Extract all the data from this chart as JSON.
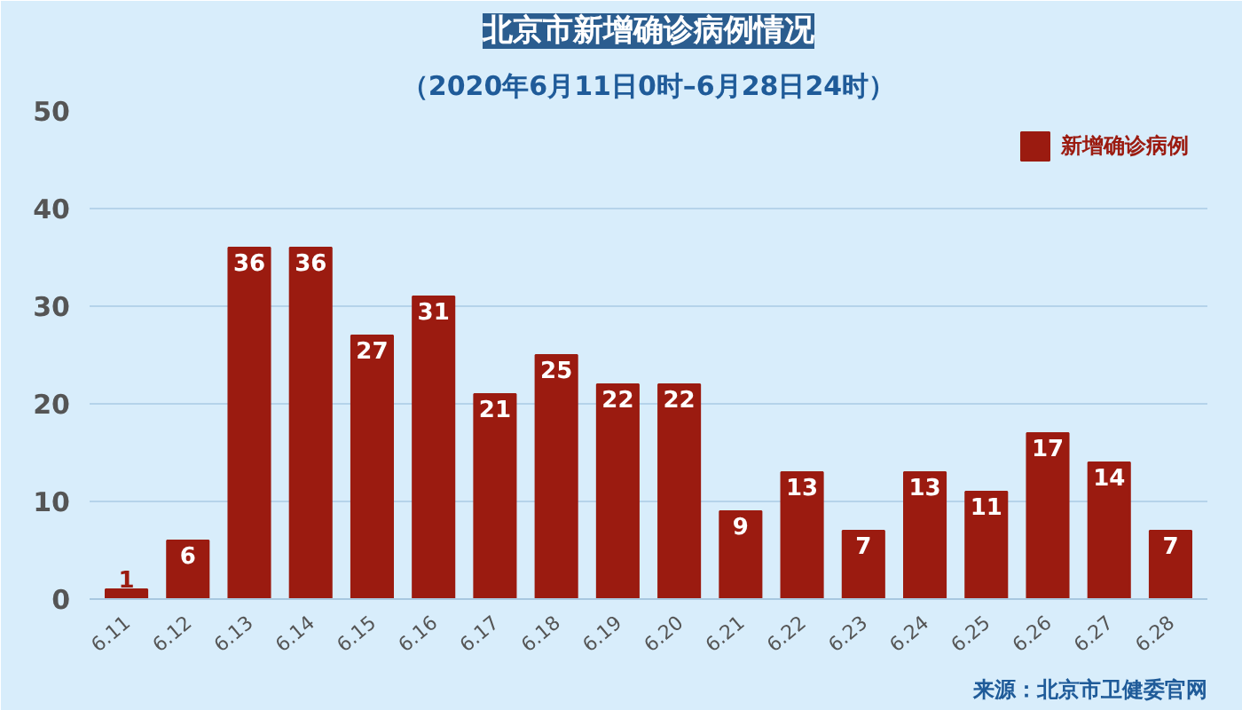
{
  "chart_data": {
    "type": "bar",
    "title": "北京市新增确诊病例情况",
    "subtitle": "（2020年6月11日0时–6月28日24时）",
    "categories": [
      "6.11",
      "6.12",
      "6.13",
      "6.14",
      "6.15",
      "6.16",
      "6.17",
      "6.18",
      "6.19",
      "6.20",
      "6.21",
      "6.22",
      "6.23",
      "6.24",
      "6.25",
      "6.26",
      "6.27",
      "6.28"
    ],
    "series": [
      {
        "name": "新增确诊病例",
        "color": "#9b1b10",
        "values": [
          1,
          6,
          36,
          36,
          27,
          31,
          21,
          25,
          22,
          22,
          9,
          13,
          7,
          13,
          11,
          17,
          14,
          7
        ]
      }
    ],
    "ylim": [
      0,
      50
    ],
    "yticks": [
      0,
      10,
      20,
      30,
      40,
      50
    ],
    "grid": "y",
    "legend": "top right",
    "data_labels": true,
    "annotations": [
      "来源：北京市卫健委官网"
    ]
  }
}
